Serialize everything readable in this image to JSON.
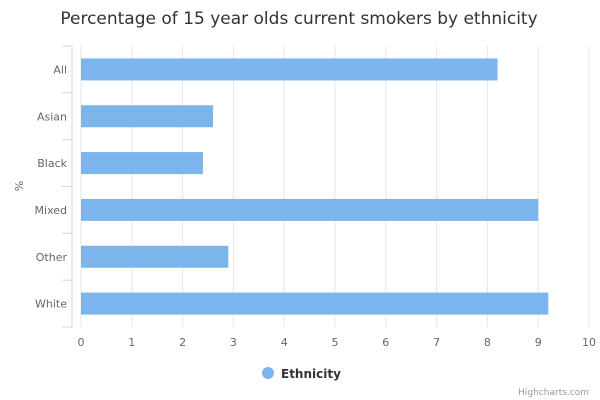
{
  "chart_data": {
    "type": "bar",
    "orientation": "horizontal",
    "title": "Percentage of 15 year olds current smokers by ethnicity",
    "ylabel": "%",
    "categories": [
      "All",
      "Asian",
      "Black",
      "Mixed",
      "Other",
      "White"
    ],
    "series": [
      {
        "name": "Ethnicity",
        "color": "#7cb5ec",
        "values": [
          8.2,
          2.6,
          2.4,
          9.0,
          2.9,
          9.2
        ]
      }
    ],
    "xlim": [
      0,
      10
    ],
    "xticks": [
      0,
      1,
      2,
      3,
      4,
      5,
      6,
      7,
      8,
      9,
      10
    ],
    "grid": true,
    "legend_position": "bottom-center"
  },
  "credit": "Highcharts.com"
}
